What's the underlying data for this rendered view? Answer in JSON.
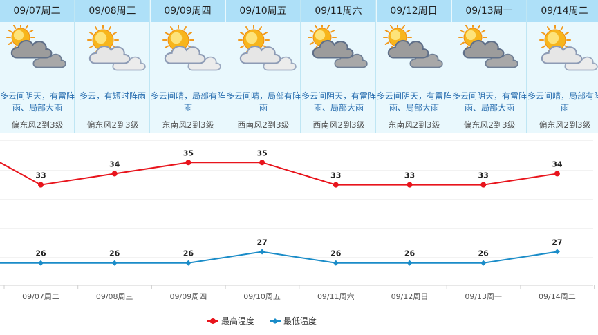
{
  "days": [
    {
      "date": "09/07周二",
      "desc": "多云间阴天，有雷阵雨、局部大雨",
      "wind": "偏东风2到3级",
      "icon": "cloudy-sun-icon"
    },
    {
      "date": "09/08周三",
      "desc": "多云，有短时阵雨",
      "wind": "偏东风2到3级",
      "icon": "partly-cloudy-icon"
    },
    {
      "date": "09/09周四",
      "desc": "多云间晴，局部有阵雨",
      "wind": "东南风2到3级",
      "icon": "partly-cloudy-icon"
    },
    {
      "date": "09/10周五",
      "desc": "多云间晴，局部有阵雨",
      "wind": "西南风2到3级",
      "icon": "partly-cloudy-icon"
    },
    {
      "date": "09/11周六",
      "desc": "多云间阴天，有雷阵雨、局部大雨",
      "wind": "西南风2到3级",
      "icon": "cloudy-sun-icon"
    },
    {
      "date": "09/12周日",
      "desc": "多云间阴天，有雷阵雨、局部大雨",
      "wind": "东南风2到3级",
      "icon": "cloudy-sun-icon"
    },
    {
      "date": "09/13周一",
      "desc": "多云间阴天，有雷阵雨、局部大雨",
      "wind": "偏东风2到3级",
      "icon": "cloudy-sun-icon"
    },
    {
      "date": "09/14周二",
      "desc": "多云间晴，局部有阵雨",
      "wind": "偏东风2到3级",
      "icon": "partly-cloudy-icon"
    }
  ],
  "chart_data": {
    "type": "line",
    "categories": [
      "09/07周二",
      "09/08周三",
      "09/09周四",
      "09/10周五",
      "09/11周六",
      "09/12周日",
      "09/13周一",
      "09/14周二"
    ],
    "series": [
      {
        "name": "最高温度",
        "values": [
          33,
          34,
          35,
          35,
          33,
          33,
          33,
          34
        ],
        "color": "#e8141c"
      },
      {
        "name": "最低温度",
        "values": [
          26,
          26,
          26,
          27,
          26,
          26,
          26,
          27
        ],
        "color": "#1a8cc8"
      }
    ],
    "leading_values": {
      "high": 35,
      "low": 26
    },
    "ylim": [
      24,
      37
    ],
    "grid": true,
    "legend": "bottom-center"
  }
}
